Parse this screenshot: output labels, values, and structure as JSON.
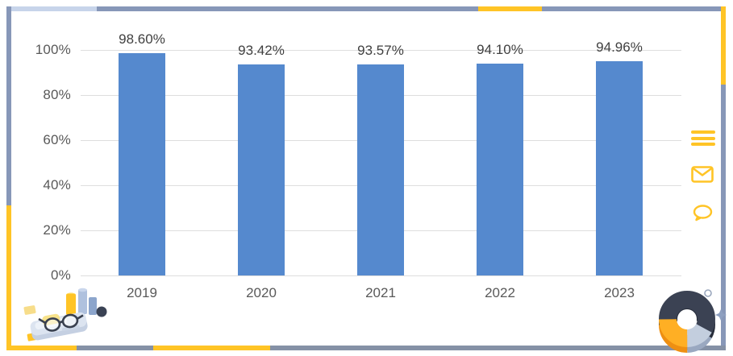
{
  "chart_data": {
    "type": "bar",
    "categories": [
      "2019",
      "2020",
      "2021",
      "2022",
      "2023"
    ],
    "values": [
      98.6,
      93.42,
      93.57,
      94.1,
      94.96
    ],
    "data_labels": [
      "98.60%",
      "93.42%",
      "93.57%",
      "94.10%",
      "94.96%"
    ],
    "y_ticks": [
      "100%",
      "80%",
      "60%",
      "40%",
      "20%",
      "0%"
    ],
    "ylim": [
      0,
      100
    ],
    "grid": true,
    "legend": false,
    "bar_color": "#5589CE"
  },
  "icons": {
    "menu": "menu-icon",
    "mail": "mail-icon",
    "chat": "chat-icon"
  },
  "decorations": {
    "bottom_left": "notebook-with-glasses-and-mini-bar-chart-illustration",
    "bottom_right": "3d-donut-chart-illustration"
  },
  "colors": {
    "frame_blue": "#8797B8",
    "frame_light_blue": "#C7D4EA",
    "frame_yellow": "#FFC426",
    "frame_gray": "#8591A6",
    "bar": "#5589CE",
    "gridline": "#DEDEDE",
    "axis_text": "#595959",
    "label_text": "#3F3F3F"
  }
}
